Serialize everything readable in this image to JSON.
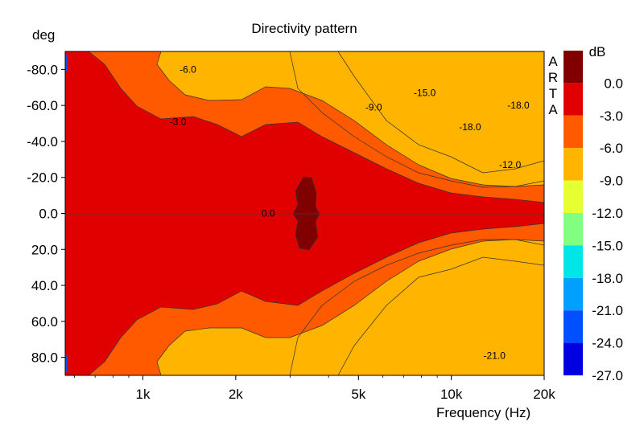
{
  "chart_data": {
    "type": "heatmap",
    "title": "Directivity pattern",
    "xlabel": "Frequency (Hz)",
    "ylabel": "deg",
    "x_scale": "log",
    "xlim": [
      560,
      20000
    ],
    "ylim": [
      -90,
      90
    ],
    "y_reversed": true,
    "x_ticks": [
      {
        "value": 1000,
        "label": "1k"
      },
      {
        "value": 2000,
        "label": "2k"
      },
      {
        "value": 5000,
        "label": "5k"
      },
      {
        "value": 10000,
        "label": "10k"
      },
      {
        "value": 20000,
        "label": "20k"
      }
    ],
    "y_ticks": [
      {
        "value": -80,
        "label": "-80.0"
      },
      {
        "value": -60,
        "label": "-60.0"
      },
      {
        "value": -40,
        "label": "-40.0"
      },
      {
        "value": -20,
        "label": "-20.0"
      },
      {
        "value": 0,
        "label": "0.0"
      },
      {
        "value": 20,
        "label": "20.0"
      },
      {
        "value": 40,
        "label": "40.0"
      },
      {
        "value": 60,
        "label": "60.0"
      },
      {
        "value": 80,
        "label": "80.0"
      }
    ],
    "colorbar": {
      "unit": "dB",
      "levels": [
        {
          "label": "0.0",
          "color": "#800000"
        },
        {
          "label": "-3.0",
          "color": "#e00000"
        },
        {
          "label": "-6.0",
          "color": "#ff5a00"
        },
        {
          "label": "-9.0",
          "color": "#ffb400"
        },
        {
          "label": "-12.0",
          "color": "#e6ff33"
        },
        {
          "label": "-15.0",
          "color": "#80ff80"
        },
        {
          "label": "-18.0",
          "color": "#00e6e6"
        },
        {
          "label": "-21.0",
          "color": "#00a0ff"
        },
        {
          "label": "-24.0",
          "color": "#0050ff"
        },
        {
          "label": "-27.0",
          "color": "#0000e0"
        }
      ]
    },
    "contour_labels": [
      {
        "label": "-6.0",
        "x": 1400,
        "y": -80
      },
      {
        "label": "-3.0",
        "x": 1300,
        "y": -51
      },
      {
        "label": "-15.0",
        "x": 8200,
        "y": -67
      },
      {
        "label": "-9.0",
        "x": 5600,
        "y": -59
      },
      {
        "label": "-18.0",
        "x": 16500,
        "y": -60
      },
      {
        "label": "-18.0",
        "x": 11500,
        "y": -48
      },
      {
        "label": "-12.0",
        "x": 15500,
        "y": -27
      },
      {
        "label": "0.0",
        "x": 2550,
        "y": 0
      },
      {
        "label": "-21.0",
        "x": 13800,
        "y": 79
      }
    ],
    "watermark": [
      "A",
      "R",
      "T",
      "A"
    ],
    "grid": false
  }
}
